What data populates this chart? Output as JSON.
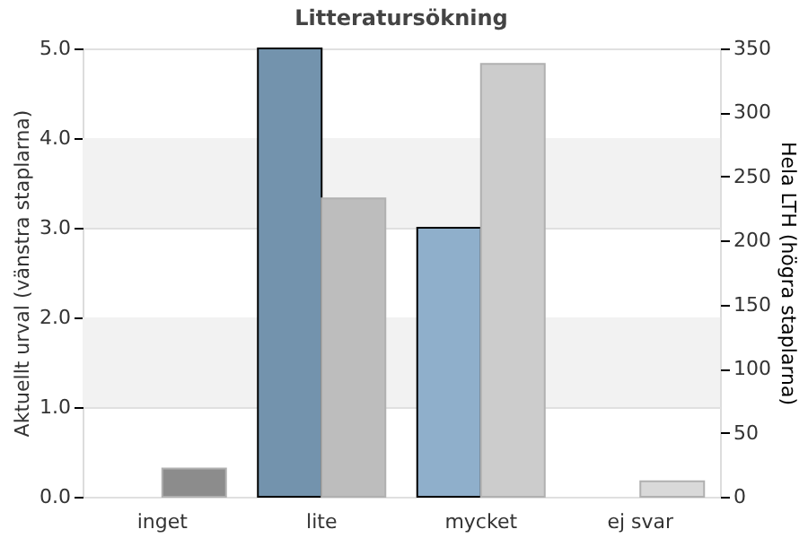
{
  "chart_data": {
    "type": "bar",
    "title": "Litteratursökning",
    "ylabel": "Aktuellt urval (vänstra staplarna)",
    "y2label": "Hela LTH (högra staplarna)",
    "categories": [
      "inget",
      "lite",
      "mycket",
      "ej svar"
    ],
    "series": [
      {
        "values": [
          0,
          5.0,
          3.0,
          0
        ],
        "colors": [
          "#7393ad",
          "#7393ad",
          "#8fafcb",
          "#8fafcb"
        ]
      },
      {
        "axis": "y2",
        "values": [
          22,
          233,
          338,
          12
        ],
        "colors": [
          "#8c8c8c",
          "#bdbdbd",
          "#cccccc",
          "#d9d9d9"
        ]
      }
    ],
    "ylim": [
      0,
      5.0
    ],
    "yticks": [
      {
        "value": 0,
        "label": "0.0"
      },
      {
        "value": 1,
        "label": "1.0"
      },
      {
        "value": 2,
        "label": "2.0"
      },
      {
        "value": 3,
        "label": "3.0"
      },
      {
        "value": 4,
        "label": "4.0"
      },
      {
        "value": 5,
        "label": "5.0"
      }
    ],
    "y2lim": [
      0,
      350
    ],
    "y2ticks": [
      0,
      50,
      100,
      150,
      200,
      250,
      300,
      350
    ],
    "bands": [
      {
        "axis": "y",
        "from": 1,
        "to": 2,
        "color": "#f2f2f2"
      },
      {
        "axis": "y",
        "from": 3,
        "to": 4,
        "color": "#f2f2f2"
      }
    ],
    "grid": "y"
  }
}
